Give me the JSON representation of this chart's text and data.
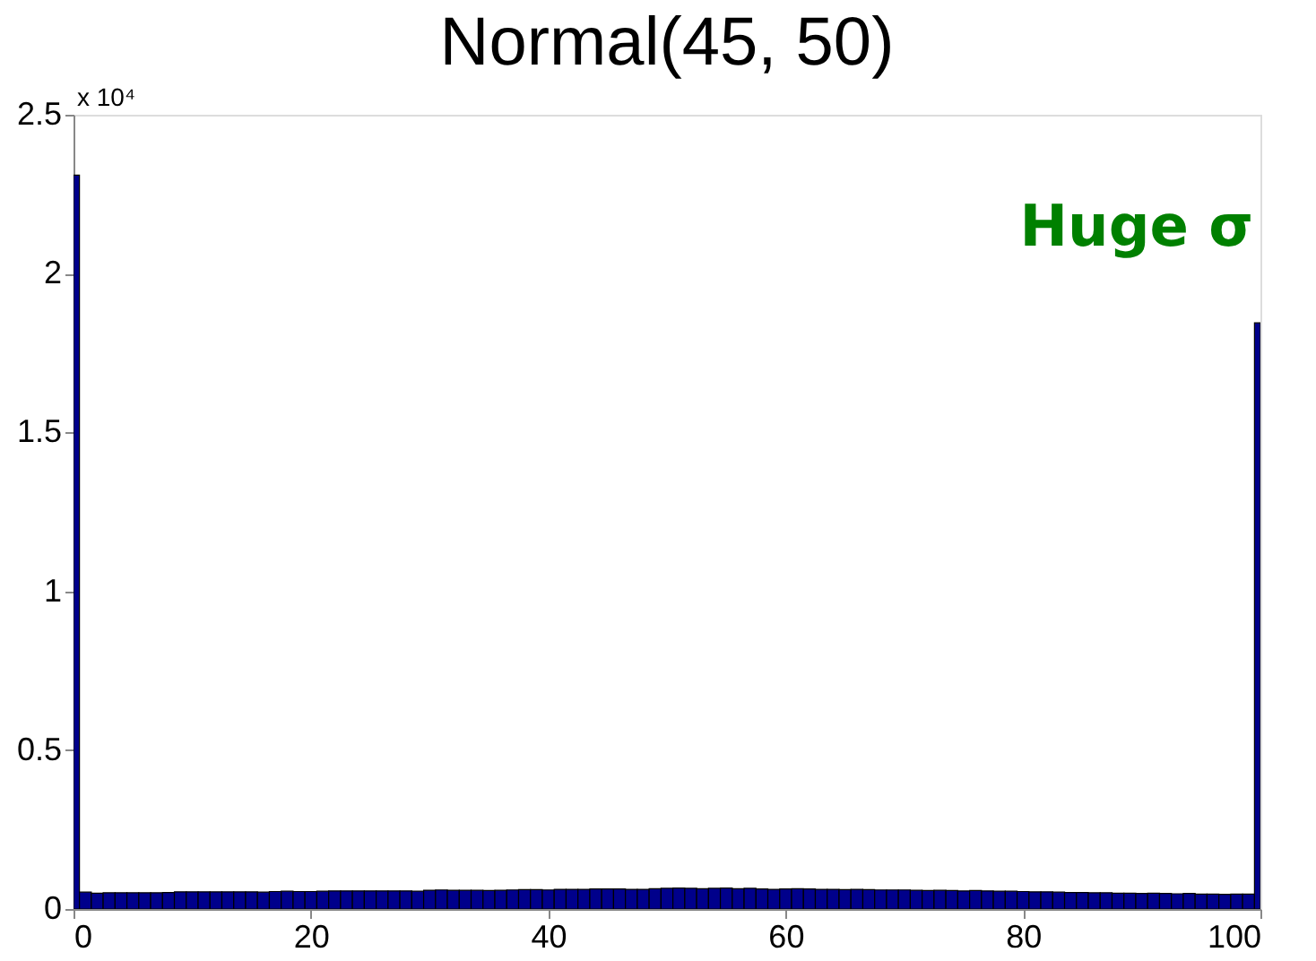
{
  "chart_data": {
    "type": "histogram",
    "title": "Normal(45, 50)",
    "bins": [
      0,
      0.5,
      1.5,
      2.5,
      3.5,
      4.5,
      5.5,
      6.5,
      7.5,
      8.5,
      9.5,
      10.5,
      11.5,
      12.5,
      13.5,
      14.5,
      15.5,
      16.5,
      17.5,
      18.5,
      19.5,
      20.5,
      21.5,
      22.5,
      23.5,
      24.5,
      25.5,
      26.5,
      27.5,
      28.5,
      29.5,
      30.5,
      31.5,
      32.5,
      33.5,
      34.5,
      35.5,
      36.5,
      37.5,
      38.5,
      39.5,
      40.5,
      41.5,
      42.5,
      43.5,
      44.5,
      45.5,
      46.5,
      47.5,
      48.5,
      49.5,
      50.5,
      51.5,
      52.5,
      53.5,
      54.5,
      55.5,
      56.5,
      57.5,
      58.5,
      59.5,
      60.5,
      61.5,
      62.5,
      63.5,
      64.5,
      65.5,
      66.5,
      67.5,
      68.5,
      69.5,
      70.5,
      71.5,
      72.5,
      73.5,
      74.5,
      75.5,
      76.5,
      77.5,
      78.5,
      79.5,
      80.5,
      81.5,
      82.5,
      83.5,
      84.5,
      85.5,
      86.5,
      87.5,
      88.5,
      89.5,
      90.5,
      91.5,
      92.5,
      93.5,
      94.5,
      95.5,
      96.5,
      97.5,
      98.5,
      99.5,
      100
    ],
    "values": [
      2.31,
      0.053,
      0.05,
      0.051,
      0.051,
      0.051,
      0.051,
      0.051,
      0.052,
      0.054,
      0.054,
      0.054,
      0.054,
      0.054,
      0.054,
      0.054,
      0.053,
      0.055,
      0.056,
      0.055,
      0.055,
      0.056,
      0.057,
      0.057,
      0.057,
      0.057,
      0.057,
      0.057,
      0.057,
      0.056,
      0.059,
      0.06,
      0.059,
      0.059,
      0.059,
      0.058,
      0.059,
      0.06,
      0.061,
      0.061,
      0.06,
      0.062,
      0.062,
      0.062,
      0.063,
      0.063,
      0.063,
      0.062,
      0.062,
      0.064,
      0.065,
      0.066,
      0.065,
      0.064,
      0.065,
      0.066,
      0.064,
      0.065,
      0.063,
      0.062,
      0.063,
      0.064,
      0.063,
      0.062,
      0.062,
      0.061,
      0.062,
      0.061,
      0.06,
      0.06,
      0.06,
      0.059,
      0.058,
      0.059,
      0.058,
      0.057,
      0.058,
      0.057,
      0.056,
      0.056,
      0.055,
      0.054,
      0.054,
      0.053,
      0.052,
      0.052,
      0.051,
      0.051,
      0.05,
      0.05,
      0.049,
      0.05,
      0.049,
      0.048,
      0.049,
      0.047,
      0.047,
      0.046,
      0.047,
      0.047,
      1.845
    ],
    "color": "#00008b",
    "xlim": [
      0,
      100
    ],
    "xticks": [
      0,
      20,
      40,
      60,
      80,
      100
    ],
    "ylim": [
      0,
      2.5
    ],
    "yticks": [
      0,
      0.5,
      1,
      1.5,
      2,
      2.5
    ],
    "annotations": [
      "x 10⁴",
      "Huge σ"
    ],
    "grid": false
  }
}
